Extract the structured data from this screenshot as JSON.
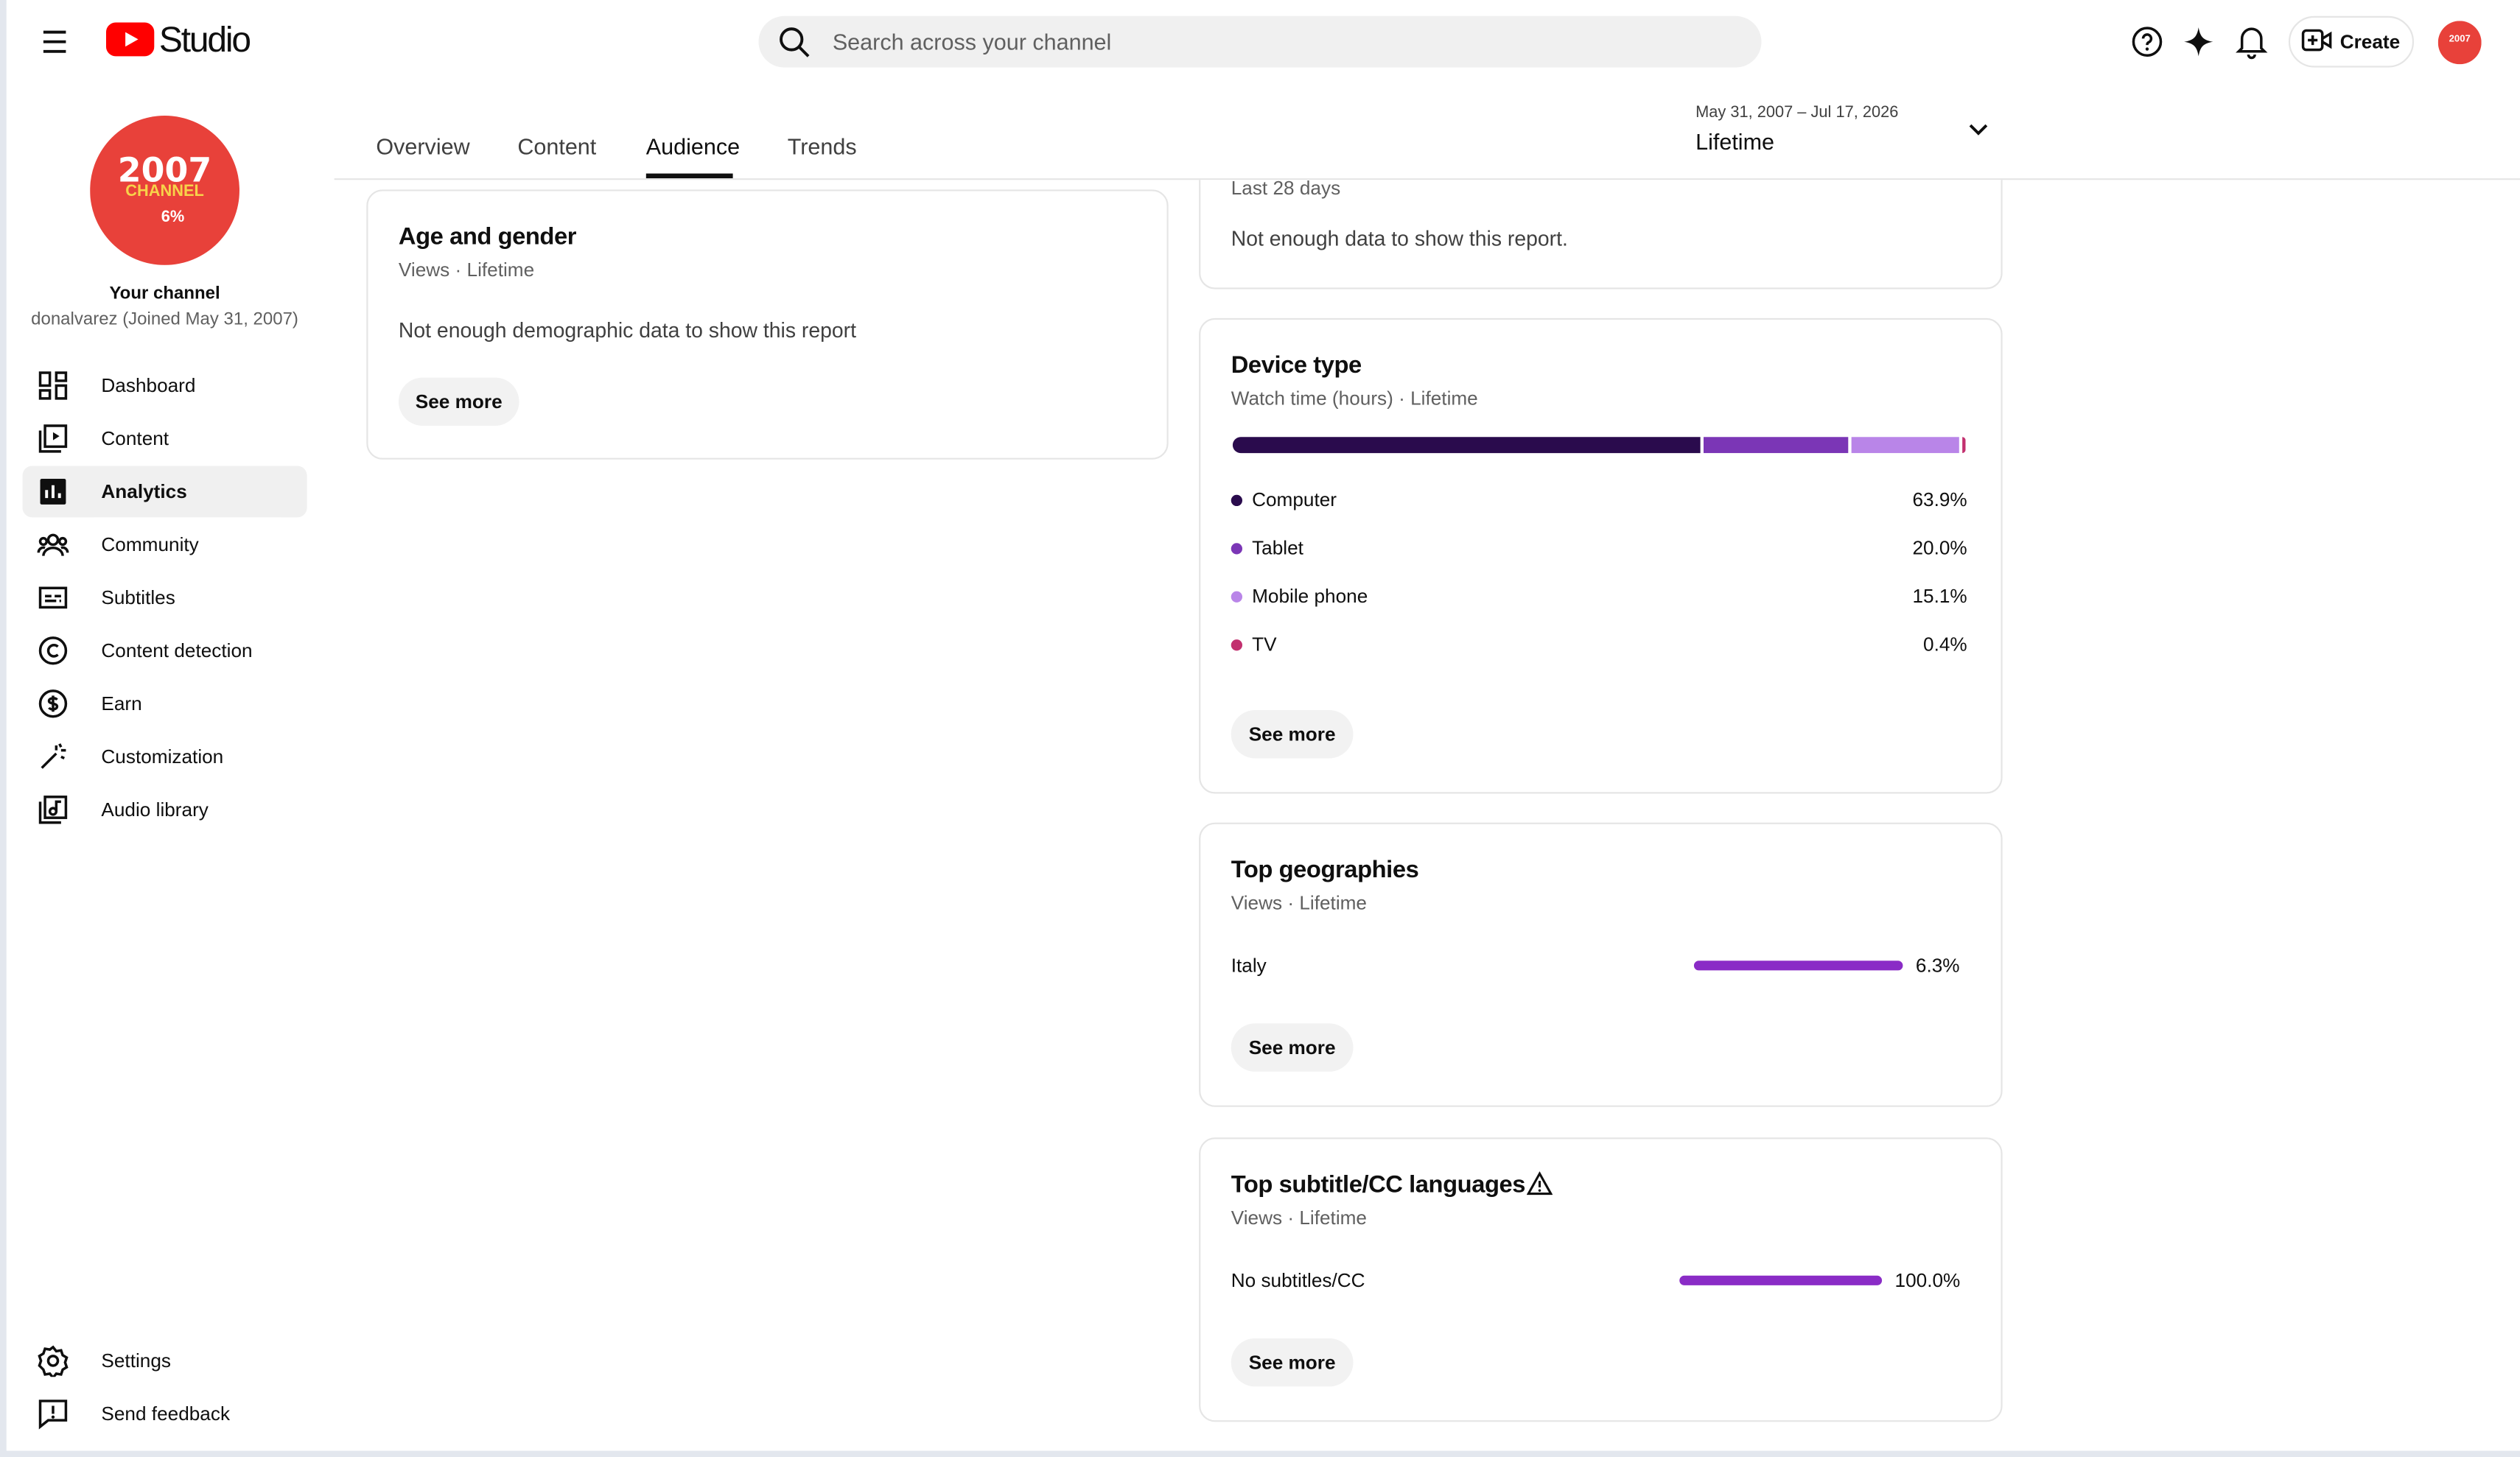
{
  "header": {
    "logo": "Studio",
    "search_placeholder": "Search across your channel",
    "create": "Create"
  },
  "sidebar": {
    "avatar": {
      "line1": "2007",
      "line2": "CHANNEL",
      "line3": "6%"
    },
    "channel_title": "Your channel",
    "channel_handle": "donalvarez (Joined May 31, 2007)",
    "nav": [
      "Dashboard",
      "Content",
      "Analytics",
      "Community",
      "Subtitles",
      "Content detection",
      "Earn",
      "Customization",
      "Audio library"
    ],
    "active": 2,
    "footer": [
      "Settings",
      "Send feedback"
    ]
  },
  "tabs": {
    "items": [
      "Overview",
      "Content",
      "Audience",
      "Trends"
    ],
    "active": 2
  },
  "date_range": {
    "range": "May 31, 2007 – Jul 17, 2026",
    "label": "Lifetime"
  },
  "cards": {
    "age_gender": {
      "title": "Age and gender",
      "subtitle": "Views · Lifetime",
      "message": "Not enough demographic data to show this report",
      "button": "See more"
    },
    "top_partial": {
      "subtitle": "Last 28 days",
      "message": "Not enough data to show this report."
    },
    "device_type": {
      "title": "Device type",
      "subtitle": "Watch time (hours) · Lifetime",
      "button": "See more",
      "items": [
        {
          "name": "Computer",
          "value": 63.9,
          "label": "63.9%",
          "color": "#2a0b4d"
        },
        {
          "name": "Tablet",
          "value": 20.0,
          "label": "20.0%",
          "color": "#7b36b6"
        },
        {
          "name": "Mobile phone",
          "value": 15.1,
          "label": "15.1%",
          "color": "#b985e8"
        },
        {
          "name": "TV",
          "value": 0.4,
          "label": "0.4%",
          "color": "#c2306f"
        }
      ]
    },
    "geographies": {
      "title": "Top geographies",
      "subtitle": "Views · Lifetime",
      "button": "See more",
      "items": [
        {
          "name": "Italy",
          "value": 6.3,
          "label": "6.3%"
        }
      ],
      "color": "#8a2cc6"
    },
    "subtitle_languages": {
      "title": "Top subtitle/CC languages",
      "subtitle": "Views · Lifetime",
      "button": "See more",
      "items": [
        {
          "name": "No subtitles/CC",
          "value": 100.0,
          "label": "100.0%"
        }
      ],
      "color": "#8a2cc6"
    }
  }
}
